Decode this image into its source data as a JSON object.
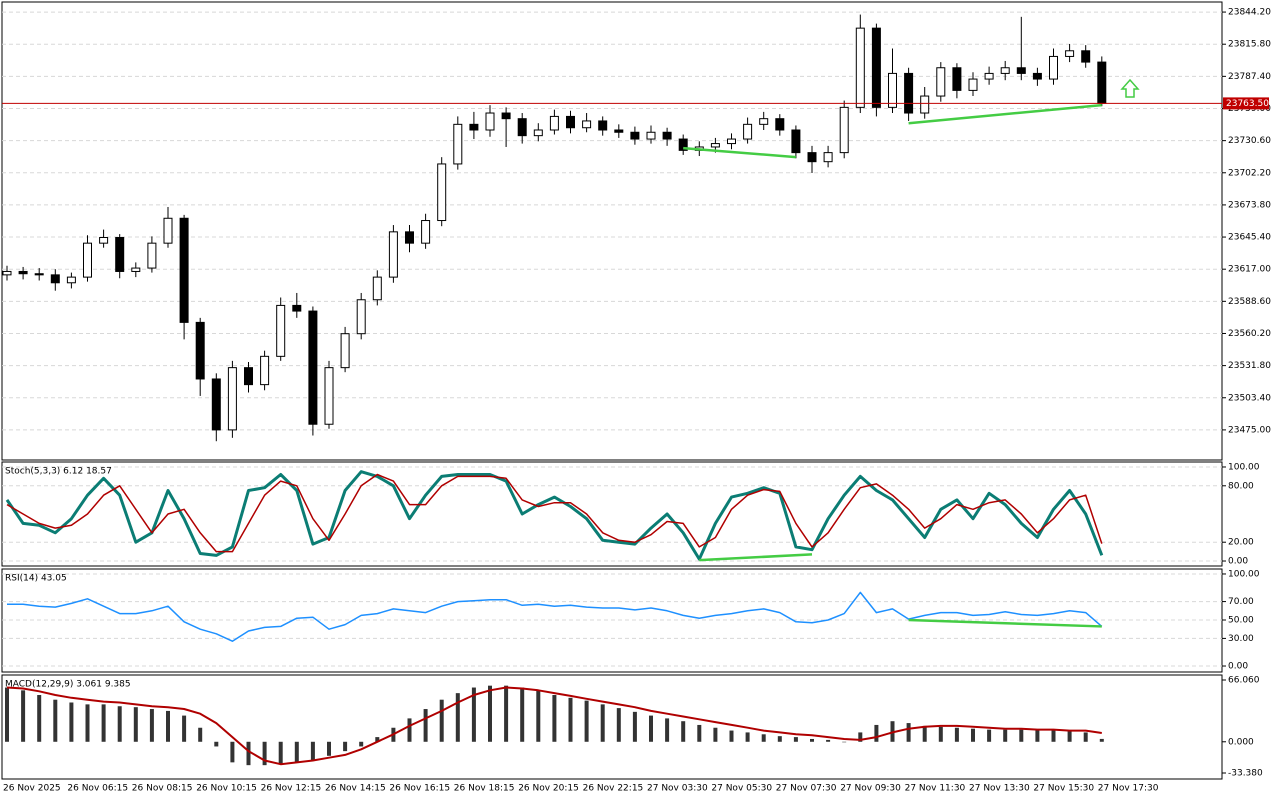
{
  "chart_data": [
    {
      "type": "candlestick",
      "categories": [
        "26 Nov 2025",
        null,
        null,
        null,
        "26 Nov 06:15",
        null,
        null,
        null,
        "26 Nov 08:15",
        null,
        null,
        null,
        "26 Nov 10:15",
        null,
        null,
        null,
        "26 Nov 12:15",
        null,
        null,
        null,
        "26 Nov 14:15",
        null,
        null,
        null,
        "26 Nov 16:15",
        null,
        null,
        null,
        "26 Nov 18:15",
        null,
        null,
        null,
        "26 Nov 20:15",
        null,
        null,
        null,
        "26 Nov 22:15",
        null,
        null,
        null,
        "27 Nov 03:30",
        null,
        null,
        null,
        "27 Nov 05:30",
        null,
        null,
        null,
        "27 Nov 07:30",
        null,
        null,
        null,
        "27 Nov 09:30",
        null,
        null,
        null,
        "27 Nov 11:30",
        null,
        null,
        null,
        "27 Nov 13:30",
        null,
        null,
        null,
        "27 Nov 15:30",
        null,
        null,
        null,
        "27 Nov 17:30"
      ],
      "open": [
        23612,
        23615,
        23613,
        23612,
        23605,
        23610,
        23640,
        23645,
        23615,
        23618,
        23640,
        23662,
        23570,
        23520,
        23475,
        23530,
        23515,
        23540,
        23585,
        23580,
        23480,
        23530,
        23560,
        23590,
        23610,
        23650,
        23640,
        23660,
        23710,
        23745,
        23740,
        23755,
        23750,
        23735,
        23740,
        23752,
        23742,
        23748,
        23740,
        23738,
        23732,
        23738,
        23732,
        23722,
        23725,
        23728,
        23732,
        23745,
        23750,
        23740,
        23720,
        23712,
        23720,
        23760,
        23830,
        23760,
        23790,
        23755,
        23770,
        23795,
        23775,
        23785,
        23790,
        23795,
        23790,
        23785,
        23805,
        23810,
        23800
      ],
      "high": [
        23620,
        23619,
        23618,
        23617,
        23614,
        23647,
        23652,
        23648,
        23623,
        23646,
        23672,
        23665,
        23574,
        23525,
        23536,
        23535,
        23545,
        23592,
        23596,
        23584,
        23536,
        23566,
        23596,
        23616,
        23656,
        23656,
        23666,
        23716,
        23752,
        23756,
        23762,
        23760,
        23755,
        23746,
        23758,
        23757,
        23755,
        23752,
        23745,
        23743,
        23744,
        23742,
        23736,
        23730,
        23733,
        23737,
        23751,
        23756,
        23754,
        23744,
        23726,
        23726,
        23766,
        23842,
        23834,
        23812,
        23795,
        23778,
        23800,
        23799,
        23791,
        23796,
        23801,
        23840,
        23795,
        23812,
        23816,
        23815,
        23805
      ],
      "low": [
        23607,
        23608,
        23607,
        23598,
        23600,
        23606,
        23636,
        23609,
        23610,
        23614,
        23636,
        23555,
        23505,
        23465,
        23468,
        23508,
        23510,
        23536,
        23574,
        23470,
        23476,
        23526,
        23555,
        23585,
        23605,
        23632,
        23635,
        23655,
        23705,
        23732,
        23734,
        23725,
        23728,
        23730,
        23736,
        23737,
        23738,
        23735,
        23733,
        23727,
        23728,
        23726,
        23718,
        23717,
        23720,
        23723,
        23728,
        23740,
        23735,
        23715,
        23702,
        23707,
        23715,
        23755,
        23752,
        23755,
        23748,
        23750,
        23765,
        23768,
        23770,
        23780,
        23784,
        23784,
        23779,
        23780,
        23800,
        23795,
        23761
      ],
      "close": [
        23615,
        23613,
        23612,
        23605,
        23610,
        23640,
        23645,
        23615,
        23618,
        23640,
        23662,
        23570,
        23520,
        23475,
        23530,
        23515,
        23540,
        23585,
        23580,
        23480,
        23530,
        23560,
        23590,
        23610,
        23650,
        23640,
        23660,
        23710,
        23745,
        23740,
        23755,
        23750,
        23735,
        23740,
        23752,
        23742,
        23748,
        23740,
        23738,
        23732,
        23738,
        23732,
        23722,
        23725,
        23728,
        23732,
        23745,
        23750,
        23740,
        23720,
        23712,
        23720,
        23760,
        23830,
        23760,
        23790,
        23755,
        23770,
        23795,
        23775,
        23785,
        23790,
        23795,
        23790,
        23785,
        23805,
        23810,
        23800,
        23763.5
      ],
      "up_color": "#ffffff",
      "down_color": "#000000",
      "ylim": [
        23448.4,
        23853.1
      ],
      "yticks": [
        {
          "value": 23844.2,
          "label": "23844.20"
        },
        {
          "value": 23815.8,
          "label": "23815.80"
        },
        {
          "value": 23787.4,
          "label": "23787.40"
        },
        {
          "value": 23759,
          "label": "23759.00"
        },
        {
          "value": 23730.6,
          "label": "23730.60"
        },
        {
          "value": 23702.2,
          "label": "23702.20"
        },
        {
          "value": 23673.8,
          "label": "23673.80"
        },
        {
          "value": 23645.4,
          "label": "23645.40"
        },
        {
          "value": 23617,
          "label": "23617.00"
        },
        {
          "value": 23588.6,
          "label": "23588.60"
        },
        {
          "value": 23560.2,
          "label": "23560.20"
        },
        {
          "value": 23531.8,
          "label": "23531.80"
        },
        {
          "value": 23503.4,
          "label": "23503.40"
        },
        {
          "value": 23475,
          "label": "23475.00"
        }
      ],
      "grid": true,
      "last_price": {
        "value": 23763.5,
        "label": "23763.50"
      },
      "last_price_color": "#c00000",
      "trendlines": [
        {
          "color": "#44cc44",
          "x": [
            42,
            49
          ],
          "y": [
            23724,
            23716
          ]
        },
        {
          "color": "#44cc44",
          "x": [
            56,
            68
          ],
          "y": [
            23746,
            23762
          ]
        }
      ]
    },
    {
      "type": "line",
      "title": "Stoch(5,3,3) 6.12 18.57",
      "series": [
        {
          "color": "#0b7d74",
          "width": 3,
          "values": [
            65,
            40,
            38,
            30,
            45,
            70,
            88,
            70,
            20,
            30,
            75,
            45,
            8,
            6,
            15,
            75,
            78,
            92,
            75,
            18,
            25,
            75,
            95,
            90,
            80,
            45,
            70,
            90,
            92,
            92,
            92,
            85,
            50,
            60,
            68,
            58,
            45,
            22,
            20,
            18,
            35,
            50,
            30,
            2,
            40,
            68,
            72,
            78,
            72,
            15,
            12,
            45,
            70,
            90,
            75,
            65,
            45,
            25,
            55,
            65,
            45,
            72,
            60,
            40,
            25,
            55,
            75,
            50,
            6.12
          ]
        },
        {
          "color": "#b00000",
          "width": 1.5,
          "values": [
            60,
            50,
            40,
            35,
            38,
            50,
            70,
            80,
            55,
            30,
            50,
            55,
            30,
            10,
            10,
            40,
            70,
            85,
            80,
            45,
            22,
            50,
            80,
            92,
            85,
            60,
            60,
            80,
            90,
            90,
            90,
            88,
            65,
            58,
            62,
            62,
            50,
            30,
            22,
            20,
            28,
            42,
            40,
            15,
            25,
            55,
            70,
            76,
            74,
            40,
            15,
            30,
            55,
            78,
            82,
            70,
            55,
            35,
            45,
            60,
            55,
            62,
            65,
            50,
            30,
            45,
            65,
            70,
            18.57
          ]
        }
      ],
      "ylim": [
        -5.3,
        105.3
      ],
      "yticks": [
        {
          "value": 100,
          "label": "100.00"
        },
        {
          "value": 80,
          "label": "80.00"
        },
        {
          "value": 20,
          "label": "20.00"
        },
        {
          "value": 0,
          "label": "0.00"
        }
      ],
      "grid": true,
      "trendlines": [
        {
          "color": "#44cc44",
          "x": [
            43,
            50
          ],
          "y": [
            1,
            7
          ]
        }
      ]
    },
    {
      "type": "line",
      "title": "RSI(14) 43.05",
      "series": [
        {
          "color": "#1e90ff",
          "width": 1.5,
          "values": [
            67,
            67,
            65,
            64,
            68,
            73,
            65,
            57,
            57,
            60,
            65,
            48,
            40,
            35,
            27,
            38,
            42,
            43,
            52,
            53,
            40,
            45,
            55,
            57,
            62,
            60,
            58,
            65,
            70,
            71,
            72,
            72,
            66,
            67,
            65,
            66,
            64,
            63,
            63,
            61,
            63,
            60,
            55,
            52,
            55,
            57,
            60,
            62,
            58,
            48,
            47,
            50,
            57,
            80,
            58,
            62,
            51,
            55,
            58,
            58,
            55,
            56,
            59,
            56,
            55,
            57,
            60,
            58,
            43.05
          ]
        }
      ],
      "ylim": [
        -6.5,
        105.4
      ],
      "yticks": [
        {
          "value": 100,
          "label": "100.00"
        },
        {
          "value": 70,
          "label": "70.00"
        },
        {
          "value": 50,
          "label": "50.00"
        },
        {
          "value": 30,
          "label": "30.00"
        },
        {
          "value": 0,
          "label": "0.00"
        }
      ],
      "grid": true,
      "trendlines": [
        {
          "color": "#44cc44",
          "x": [
            56,
            68
          ],
          "y": [
            50,
            43
          ]
        }
      ]
    },
    {
      "type": "macd",
      "title": "MACD(12,29,9) 3.061 9.385",
      "histogram": {
        "color": "#333333",
        "values": [
          58,
          55,
          50,
          45,
          42,
          40,
          40,
          38,
          37,
          35,
          33,
          28,
          15,
          -5,
          -22,
          -25,
          -25,
          -24,
          -22,
          -20,
          -15,
          -10,
          -5,
          5,
          15,
          25,
          35,
          45,
          52,
          58,
          60,
          60,
          58,
          55,
          50,
          47,
          44,
          40,
          36,
          32,
          28,
          25,
          22,
          18,
          15,
          12,
          10,
          8,
          6,
          5,
          3,
          2,
          0,
          10,
          18,
          22,
          20,
          17,
          16,
          15,
          14,
          13,
          13,
          13,
          13,
          13,
          12,
          10,
          3.061
        ]
      },
      "signal": {
        "color": "#b00000",
        "values": [
          58,
          57,
          54,
          50,
          47,
          45,
          43,
          42,
          40,
          38,
          37,
          35,
          30,
          20,
          5,
          -10,
          -20,
          -24,
          -22,
          -20,
          -17,
          -14,
          -8,
          0,
          8,
          17,
          25,
          33,
          42,
          50,
          55,
          58,
          57,
          55,
          52,
          49,
          46,
          43,
          40,
          37,
          33,
          30,
          27,
          24,
          21,
          18,
          15,
          12,
          10,
          8,
          7,
          5,
          3,
          2,
          5,
          10,
          14,
          16,
          17,
          17,
          16,
          15,
          14,
          14,
          13,
          13,
          12,
          12,
          9.385
        ]
      },
      "ylim": [
        -39.8,
        71.4
      ],
      "yticks": [
        {
          "value": 66.06,
          "label": "66.060"
        },
        {
          "value": 0,
          "label": "0.000"
        },
        {
          "value": -33.38,
          "label": "-33.380"
        }
      ],
      "grid": false
    }
  ]
}
